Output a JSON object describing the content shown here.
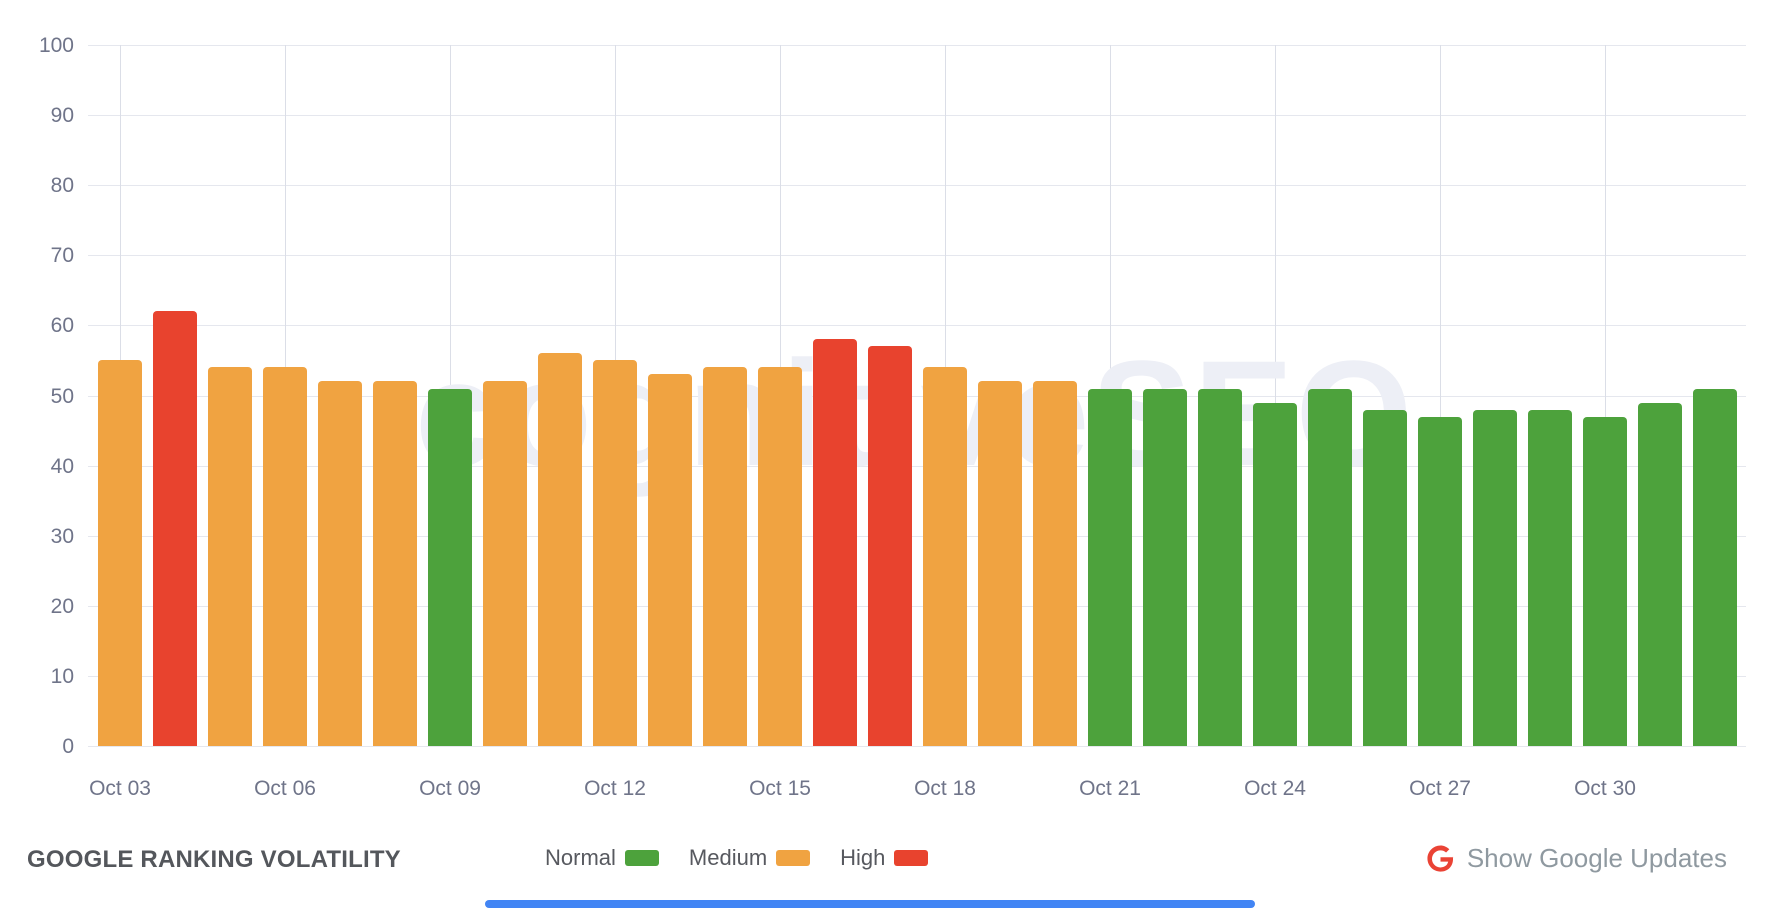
{
  "chart_data": {
    "type": "bar",
    "title": "GOOGLE RANKING VOLATILITY",
    "xlabel": "",
    "ylabel": "",
    "ylim": [
      0,
      100
    ],
    "y_ticks": [
      100,
      90,
      80,
      70,
      60,
      50,
      40,
      30,
      20,
      10,
      0
    ],
    "grid": true,
    "legend_position": "bottom",
    "categories": [
      "Oct 03",
      "Oct 04",
      "Oct 05",
      "Oct 06",
      "Oct 07",
      "Oct 08",
      "Oct 09",
      "Oct 10",
      "Oct 11",
      "Oct 12",
      "Oct 13",
      "Oct 14",
      "Oct 15",
      "Oct 16",
      "Oct 17",
      "Oct 18",
      "Oct 19",
      "Oct 20",
      "Oct 21",
      "Oct 22",
      "Oct 23",
      "Oct 24",
      "Oct 25",
      "Oct 26",
      "Oct 27",
      "Oct 28",
      "Oct 29",
      "Oct 30",
      "Oct 31",
      "Nov 01"
    ],
    "values": [
      55,
      62,
      54,
      54,
      52,
      52,
      51,
      52,
      56,
      55,
      53,
      54,
      54,
      58,
      57,
      54,
      52,
      52,
      51,
      51,
      51,
      49,
      51,
      48,
      47,
      48,
      48,
      47,
      49,
      51
    ],
    "levels": [
      "medium",
      "high",
      "medium",
      "medium",
      "medium",
      "medium",
      "normal",
      "medium",
      "medium",
      "medium",
      "medium",
      "medium",
      "medium",
      "high",
      "high",
      "medium",
      "medium",
      "medium",
      "normal",
      "normal",
      "normal",
      "normal",
      "normal",
      "normal",
      "normal",
      "normal",
      "normal",
      "normal",
      "normal",
      "normal"
    ],
    "x_tick_labels": [
      "Oct 03",
      "Oct 06",
      "Oct 09",
      "Oct 12",
      "Oct 15",
      "Oct 18",
      "Oct 21",
      "Oct 24",
      "Oct 27",
      "Oct 30"
    ],
    "level_colors": {
      "normal": "#4DA23C",
      "medium": "#F0A341",
      "high": "#E8432E"
    }
  },
  "footer": {
    "title": "GOOGLE RANKING VOLATILITY",
    "legend": [
      {
        "label": "Normal",
        "level": "normal"
      },
      {
        "label": "Medium",
        "level": "medium"
      },
      {
        "label": "High",
        "level": "high"
      }
    ],
    "google_updates_label": "Show Google Updates"
  },
  "watermark": "cognitiveSEO",
  "colors": {
    "axis_text": "#6F7489",
    "grid_horizontal": "#E5E7EE",
    "grid_vertical": "#DBDEE7",
    "footer_title_text": "#54575C",
    "legend_text": "#57595F",
    "updates_text": "#8F99A0",
    "google_g_logo": "#EA4335",
    "scrollbar": "#4285F4"
  }
}
